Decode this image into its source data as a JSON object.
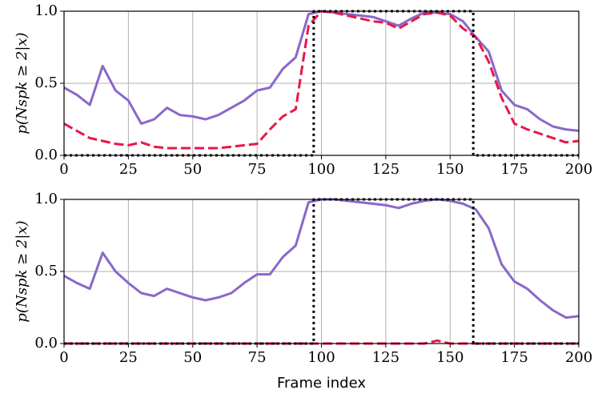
{
  "chart_data": [
    {
      "type": "line",
      "ylabel": "p(Nspk ≥ 2|x)",
      "x": [
        0,
        5,
        10,
        15,
        20,
        25,
        30,
        35,
        40,
        45,
        50,
        55,
        60,
        65,
        70,
        75,
        80,
        85,
        90,
        95,
        100,
        105,
        110,
        115,
        120,
        125,
        130,
        135,
        140,
        145,
        150,
        155,
        160,
        165,
        170,
        175,
        180,
        185,
        190,
        195,
        200
      ],
      "series": [
        {
          "color": "#8a67c9",
          "style": "solid",
          "values": [
            0.47,
            0.42,
            0.35,
            0.62,
            0.45,
            0.38,
            0.22,
            0.25,
            0.33,
            0.28,
            0.27,
            0.25,
            0.28,
            0.33,
            0.38,
            0.45,
            0.47,
            0.6,
            0.68,
            0.98,
            1.0,
            0.99,
            0.98,
            0.97,
            0.96,
            0.93,
            0.9,
            0.95,
            0.99,
            0.99,
            0.98,
            0.93,
            0.82,
            0.72,
            0.45,
            0.35,
            0.32,
            0.25,
            0.2,
            0.18,
            0.17
          ]
        },
        {
          "color": "#e8174a",
          "style": "dashed",
          "values": [
            0.22,
            0.17,
            0.12,
            0.1,
            0.08,
            0.07,
            0.09,
            0.06,
            0.05,
            0.05,
            0.05,
            0.05,
            0.05,
            0.06,
            0.07,
            0.08,
            0.18,
            0.27,
            0.32,
            0.9,
            1.0,
            0.99,
            0.97,
            0.95,
            0.93,
            0.92,
            0.88,
            0.93,
            0.98,
            0.99,
            0.97,
            0.88,
            0.82,
            0.65,
            0.4,
            0.22,
            0.18,
            0.15,
            0.12,
            0.09,
            0.1
          ]
        },
        {
          "color": "#000000",
          "style": "dotted",
          "x": [
            0,
            97,
            97,
            159,
            159,
            200
          ],
          "values": [
            0,
            0,
            1,
            1,
            0,
            0
          ]
        }
      ],
      "xlim": [
        0,
        200
      ],
      "ylim": [
        0,
        1
      ],
      "xticks": [
        0,
        25,
        50,
        75,
        100,
        125,
        150,
        175,
        200
      ],
      "yticks": [
        {
          "value": 0,
          "label": "0.0"
        },
        {
          "value": 0.5,
          "label": "0.5"
        },
        {
          "value": 1,
          "label": "1.0"
        }
      ],
      "grid": true
    },
    {
      "type": "line",
      "ylabel": "p(Nspk ≥ 2|x)",
      "xlabel": "Frame index",
      "x": [
        0,
        5,
        10,
        15,
        20,
        25,
        30,
        35,
        40,
        45,
        50,
        55,
        60,
        65,
        70,
        75,
        80,
        85,
        90,
        95,
        100,
        105,
        110,
        115,
        120,
        125,
        130,
        135,
        140,
        145,
        150,
        155,
        160,
        165,
        170,
        175,
        180,
        185,
        190,
        195,
        200
      ],
      "series": [
        {
          "color": "#8a67c9",
          "style": "solid",
          "values": [
            0.47,
            0.42,
            0.38,
            0.63,
            0.5,
            0.42,
            0.35,
            0.33,
            0.38,
            0.35,
            0.32,
            0.3,
            0.32,
            0.35,
            0.42,
            0.48,
            0.48,
            0.6,
            0.68,
            0.98,
            1.0,
            1.0,
            0.99,
            0.98,
            0.97,
            0.96,
            0.94,
            0.97,
            0.99,
            1.0,
            0.99,
            0.97,
            0.93,
            0.8,
            0.55,
            0.43,
            0.38,
            0.3,
            0.23,
            0.18,
            0.19
          ]
        },
        {
          "color": "#e8174a",
          "style": "dashed",
          "values": [
            0,
            0,
            0,
            0,
            0,
            0,
            0,
            0,
            0,
            0,
            0,
            0,
            0,
            0,
            0,
            0,
            0,
            0,
            0,
            0,
            0,
            0,
            0,
            0,
            0,
            0,
            0,
            0,
            0,
            0.02,
            0,
            0,
            0,
            0,
            0,
            0,
            0,
            0,
            0,
            0,
            0
          ]
        },
        {
          "color": "#000000",
          "style": "dotted",
          "x": [
            0,
            97,
            97,
            159,
            159,
            200
          ],
          "values": [
            0,
            0,
            1,
            1,
            0,
            0
          ]
        }
      ],
      "xlim": [
        0,
        200
      ],
      "ylim": [
        0,
        1
      ],
      "xticks": [
        0,
        25,
        50,
        75,
        100,
        125,
        150,
        175,
        200
      ],
      "yticks": [
        {
          "value": 0,
          "label": "0.0"
        },
        {
          "value": 0.5,
          "label": "0.5"
        },
        {
          "value": 1,
          "label": "1.0"
        }
      ],
      "grid": true
    }
  ]
}
